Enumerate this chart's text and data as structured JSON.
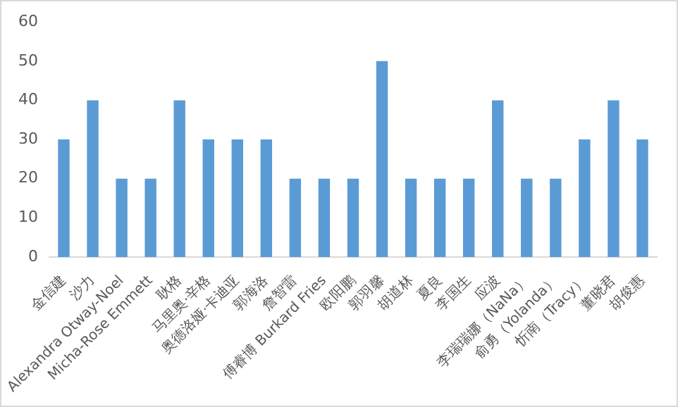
{
  "chart_data": {
    "type": "bar",
    "categories": [
      "金信建",
      "沙力",
      "Alexandra Otway-Noel",
      "Micha-Rose Emmett",
      "耿格",
      "马里奥·辛格",
      "奥德洛娅·卡迪亚",
      "郭海洛",
      "詹智雷",
      "傅睿博 Burkard Fries",
      "欧阳鹏",
      "郭羽馨",
      "胡道林",
      "夏良",
      "李国生",
      "应波",
      "李瑞瑞娜（NaNa）",
      "俞勇（Yolanda）",
      "忻南（Tracy）",
      "董晓君",
      "胡俊惠"
    ],
    "values": [
      30,
      40,
      20,
      20,
      40,
      30,
      30,
      30,
      20,
      20,
      20,
      50,
      20,
      20,
      20,
      40,
      20,
      20,
      30,
      40,
      30
    ],
    "color": "#5b9bd5",
    "ylim": [
      0,
      60
    ],
    "yticks": [
      0,
      10,
      20,
      30,
      40,
      50,
      60
    ]
  }
}
